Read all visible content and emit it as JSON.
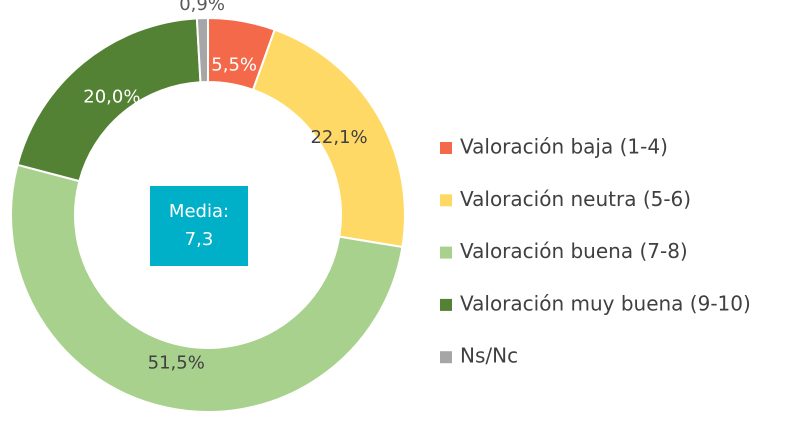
{
  "chart_data": {
    "type": "donut",
    "categories": [
      "Valoración baja (1-4)",
      "Valoración neutra (5-6)",
      "Valoración buena (7-8)",
      "Valoración muy buena (9-10)",
      "Ns/Nc"
    ],
    "values": [
      5.5,
      22.1,
      51.5,
      20.0,
      0.9
    ],
    "value_labels": [
      "5,5%",
      "22,1%",
      "51,5%",
      "20,0%",
      "0,9%"
    ],
    "colors": [
      "#f4694a",
      "#ffd966",
      "#a9d18e",
      "#548235",
      "#a6a6a6"
    ],
    "label_colors": [
      "#ffffff",
      "#404040",
      "#404040",
      "#ffffff",
      "#595959"
    ],
    "center_label": "Media:",
    "center_value": "7,3",
    "legend": "right"
  }
}
